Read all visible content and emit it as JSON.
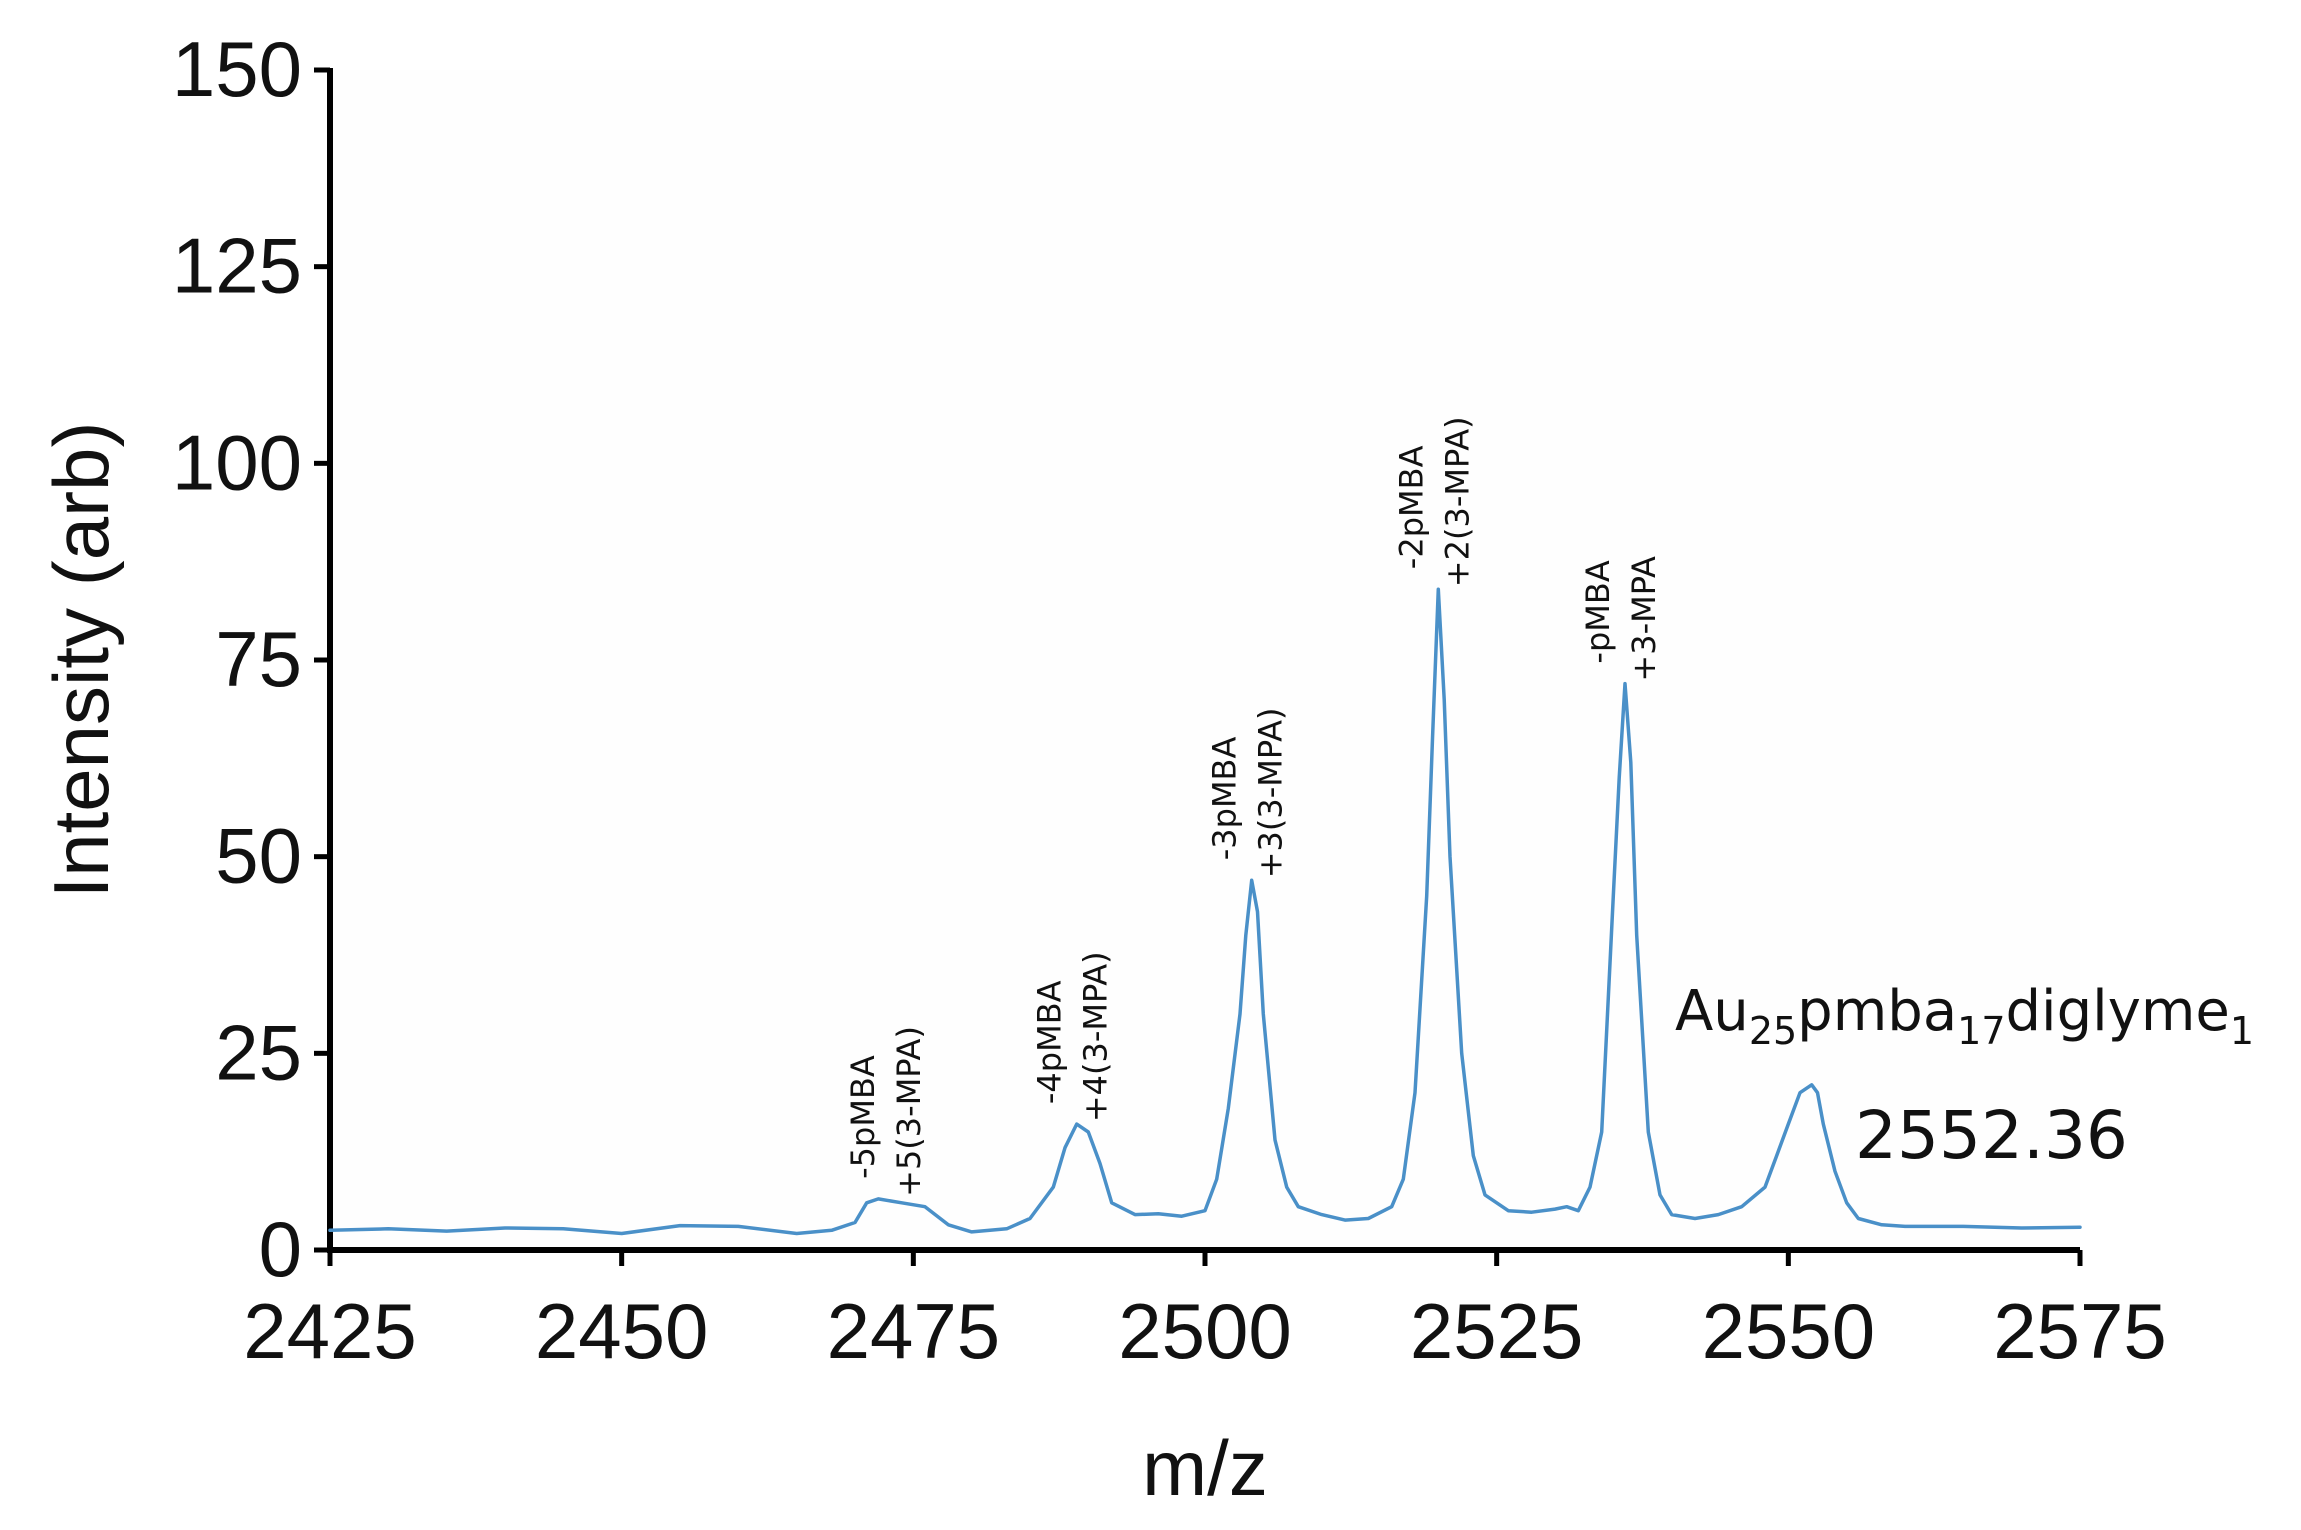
{
  "chart_data": {
    "type": "line",
    "xlabel": "m/z",
    "ylabel": "Intensity (arb)",
    "xlim": [
      2425,
      2575
    ],
    "ylim": [
      0,
      150
    ],
    "x_ticks": [
      2425,
      2450,
      2475,
      2500,
      2525,
      2550,
      2575
    ],
    "y_ticks": [
      0,
      25,
      50,
      75,
      100,
      125,
      150
    ],
    "grid": false,
    "line_color": "#4a90c8",
    "series": [
      {
        "x": [
          2425,
          2430,
          2435,
          2440,
          2445,
          2450,
          2455,
          2460,
          2465,
          2468,
          2470,
          2471,
          2472,
          2474,
          2476,
          2478,
          2480,
          2483,
          2485,
          2487,
          2488,
          2489,
          2490,
          2491,
          2492,
          2494,
          2496,
          2498,
          2500,
          2501,
          2502,
          2503,
          2503.5,
          2504,
          2504.5,
          2505,
          2506,
          2507,
          2508,
          2510,
          2512,
          2514,
          2516,
          2517,
          2518,
          2519,
          2519.5,
          2520,
          2520.5,
          2521,
          2522,
          2523,
          2524,
          2526,
          2528,
          2530,
          2531,
          2532,
          2533,
          2534,
          2535,
          2535.5,
          2536,
          2536.5,
          2537,
          2538,
          2539,
          2540,
          2542,
          2544,
          2546,
          2548,
          2549,
          2550,
          2551,
          2552,
          2552.5,
          2553,
          2554,
          2555,
          2556,
          2558,
          2560,
          2565,
          2570,
          2575
        ],
        "y": [
          2.5,
          2.7,
          2.4,
          2.8,
          2.7,
          2.1,
          3.1,
          3.0,
          2.1,
          2.5,
          3.5,
          6.0,
          6.5,
          6.0,
          5.5,
          3.2,
          2.3,
          2.7,
          4.0,
          8.0,
          13.0,
          16.0,
          15.0,
          11.0,
          6.0,
          4.5,
          4.6,
          4.3,
          5.0,
          9.0,
          18.0,
          30.0,
          40.0,
          47.0,
          43.0,
          30.0,
          14.0,
          8.0,
          5.5,
          4.5,
          3.8,
          4.0,
          5.5,
          9.0,
          20.0,
          45.0,
          65.0,
          84.0,
          70.0,
          50.0,
          25.0,
          12.0,
          7.0,
          5.0,
          4.8,
          5.2,
          5.5,
          5.0,
          8.0,
          15.0,
          45.0,
          60.0,
          72.0,
          62.0,
          40.0,
          15.0,
          7.0,
          4.5,
          4.0,
          4.5,
          5.5,
          8.0,
          12.0,
          16.0,
          20.0,
          21.0,
          20.0,
          16.0,
          10.0,
          6.0,
          4.0,
          3.2,
          3.0,
          3.0,
          2.8,
          2.9
        ]
      }
    ],
    "annotations": [
      {
        "lines": [
          "-5pMBA",
          "+5(3-MPA)"
        ]
      },
      {
        "lines": [
          "-4pMBA",
          "+4(3-MPA)"
        ]
      },
      {
        "lines": [
          "-3pMBA",
          "+3(3-MPA)"
        ]
      },
      {
        "lines": [
          "-2pMBA",
          "+2(3-MPA)"
        ]
      },
      {
        "lines": [
          "-pMBA",
          "+3-MPA"
        ]
      }
    ],
    "main_label": {
      "base": "Au",
      "sub1": "25",
      "mid": "pmba",
      "sub2": "17",
      "end": "diglyme",
      "sub3": "1",
      "value": "2552.36"
    }
  }
}
